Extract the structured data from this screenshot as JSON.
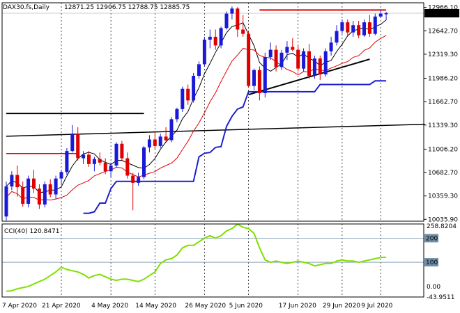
{
  "header": {
    "symbol": "DAX30.fs,Daily",
    "ohlc": "12871.25 12906.75 12788.75 12885.75"
  },
  "cci": {
    "label": "CCI(40) 120.8471",
    "value": 120.8471,
    "levels": [
      200,
      100
    ],
    "top_label": "258.8204",
    "zero_label": "0.00",
    "bottom_label": "-43.9511"
  },
  "current_price_label": "12885.75",
  "colors": {
    "bull": "#1a1ad6",
    "bear": "#e00000",
    "ma_black": "#000000",
    "ma_red": "#e00000",
    "stop_blue": "#1f1fd0",
    "cci": "#7fe000",
    "grid": "#000000"
  },
  "chart_data": {
    "type": "candlestick",
    "price_ticks": [
      "12966.10",
      "12642.70",
      "12319.30",
      "11986.20",
      "11662.70",
      "11339.30",
      "11006.20",
      "10682.70",
      "10359.30",
      "10035.90"
    ],
    "dates": [
      "7 Apr 2020",
      "21 Apr 2020",
      "4 May 2020",
      "14 May 2020",
      "26 May 2020",
      "5 Jun 2020",
      "17 Jun 2020",
      "29 Jun 2020",
      "9 Jul 2020"
    ],
    "ylim": [
      10010,
      13030
    ],
    "cci_ylim": [
      -43.9511,
      258.8204
    ],
    "candles": [
      [
        10075,
        10560,
        10020,
        10490
      ],
      [
        10490,
        10700,
        10440,
        10650
      ],
      [
        10650,
        10780,
        10350,
        10480
      ],
      [
        10480,
        10560,
        10210,
        10250
      ],
      [
        10250,
        10640,
        10200,
        10600
      ],
      [
        10600,
        10720,
        10400,
        10460
      ],
      [
        10460,
        10520,
        10180,
        10240
      ],
      [
        10240,
        10560,
        10200,
        10520
      ],
      [
        10520,
        10590,
        10340,
        10380
      ],
      [
        10380,
        10640,
        10320,
        10600
      ],
      [
        10600,
        10720,
        10520,
        10690
      ],
      [
        10690,
        11020,
        10650,
        10980
      ],
      [
        10980,
        11340,
        10960,
        11220
      ],
      [
        11220,
        11310,
        10850,
        10880
      ],
      [
        10880,
        10980,
        10800,
        10930
      ],
      [
        10930,
        10980,
        10760,
        10800
      ],
      [
        10800,
        10900,
        10700,
        10870
      ],
      [
        10870,
        10960,
        10780,
        10820
      ],
      [
        10820,
        10880,
        10660,
        10700
      ],
      [
        10700,
        10820,
        10620,
        10780
      ],
      [
        10780,
        11100,
        10750,
        11080
      ],
      [
        11080,
        11120,
        10840,
        10880
      ],
      [
        10880,
        10960,
        10600,
        10640
      ],
      [
        10640,
        10680,
        10160,
        10540
      ],
      [
        10540,
        10680,
        10500,
        10620
      ],
      [
        10620,
        11050,
        10590,
        11030
      ],
      [
        11030,
        11200,
        10960,
        11140
      ],
      [
        11140,
        11260,
        11010,
        11050
      ],
      [
        11050,
        11220,
        11020,
        11180
      ],
      [
        11180,
        11310,
        11090,
        11130
      ],
      [
        11130,
        11450,
        11100,
        11420
      ],
      [
        11420,
        11580,
        11380,
        11560
      ],
      [
        11560,
        11870,
        11520,
        11840
      ],
      [
        11840,
        11900,
        11620,
        11680
      ],
      [
        11680,
        12060,
        11650,
        12020
      ],
      [
        12020,
        12220,
        11980,
        12180
      ],
      [
        12180,
        12560,
        12150,
        12520
      ],
      [
        12520,
        12660,
        12400,
        12560
      ],
      [
        12560,
        12660,
        12380,
        12440
      ],
      [
        12440,
        12700,
        12400,
        12680
      ],
      [
        12680,
        12910,
        12660,
        12880
      ],
      [
        12880,
        12980,
        12800,
        12950
      ],
      [
        12950,
        12970,
        12560,
        12660
      ],
      [
        12660,
        12860,
        12560,
        12600
      ],
      [
        12600,
        12640,
        11860,
        11880
      ],
      [
        11880,
        12120,
        11820,
        12100
      ],
      [
        12100,
        12150,
        11680,
        11780
      ],
      [
        11780,
        12340,
        11720,
        12280
      ],
      [
        12280,
        12480,
        12240,
        12380
      ],
      [
        12380,
        12440,
        12080,
        12140
      ],
      [
        12140,
        12380,
        12100,
        12340
      ],
      [
        12340,
        12500,
        12240,
        12420
      ],
      [
        12420,
        12540,
        12360,
        12380
      ],
      [
        12380,
        12440,
        12080,
        12120
      ],
      [
        12120,
        12400,
        12080,
        12360
      ],
      [
        12360,
        12460,
        11980,
        12020
      ],
      [
        12020,
        12300,
        11980,
        12260
      ],
      [
        12260,
        12300,
        11960,
        12040
      ],
      [
        12040,
        12400,
        12010,
        12360
      ],
      [
        12360,
        12560,
        12300,
        12480
      ],
      [
        12480,
        12720,
        12440,
        12640
      ],
      [
        12640,
        12800,
        12600,
        12760
      ],
      [
        12760,
        12800,
        12580,
        12620
      ],
      [
        12620,
        12780,
        12560,
        12720
      ],
      [
        12720,
        12780,
        12540,
        12580
      ],
      [
        12580,
        12800,
        12560,
        12760
      ],
      [
        12760,
        12860,
        12560,
        12600
      ],
      [
        12600,
        12880,
        12580,
        12840
      ],
      [
        12840,
        12940,
        12820,
        12880
      ],
      [
        12871.25,
        12906.75,
        12788.75,
        12885.75
      ]
    ],
    "cci_values": [
      -20,
      -18,
      -10,
      -5,
      0,
      10,
      20,
      30,
      45,
      60,
      80,
      70,
      65,
      60,
      50,
      35,
      45,
      50,
      40,
      30,
      25,
      30,
      30,
      25,
      20,
      30,
      45,
      60,
      95,
      110,
      115,
      130,
      160,
      170,
      170,
      185,
      200,
      210,
      200,
      210,
      230,
      240,
      258,
      245,
      240,
      220,
      160,
      110,
      100,
      105,
      100,
      95,
      100,
      105,
      100,
      95,
      85,
      90,
      95,
      95,
      105,
      110,
      105,
      105,
      100,
      105,
      110,
      115,
      120,
      120.85
    ]
  }
}
